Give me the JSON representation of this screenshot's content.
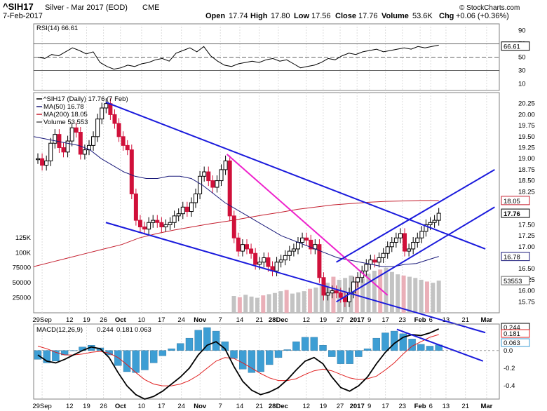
{
  "header": {
    "symbol": "^SIH17",
    "description": "Silver - Mar 2017 (EOD)",
    "exchange": "CME",
    "date": "7-Feb-2017",
    "open_label": "Open",
    "open_value": "17.74",
    "high_label": "High",
    "high_value": "17.80",
    "low_label": "Low",
    "low_value": "17.56",
    "close_label": "Close",
    "close_value": "17.76",
    "volume_label": "Volume",
    "volume_value": "53.6K",
    "chg_label": "Chg",
    "chg_value": "+0.06 (+0.36%)",
    "watermark": "© StockCharts.com"
  },
  "colors": {
    "up_candle": "#000000",
    "down_candle": "#d0103a",
    "ma50": "#1a1a7a",
    "ma200": "#c41e2e",
    "trendline": "#1a1adc",
    "magenta_line": "#ee22cc",
    "volume_up": "#bdbdbd",
    "volume_down": "#e8a6b0",
    "macd_hist": "#3d9ed4",
    "macd_line": "#000000",
    "signal_line": "#e02020"
  },
  "chart_data": [
    {
      "type": "line",
      "panel": "RSI",
      "legend": "RSI(14) 66.61",
      "current_value": 66.61,
      "ylim": [
        0,
        100
      ],
      "y_ticks": [
        90,
        70,
        50,
        30,
        10
      ],
      "reference_lines": [
        70,
        50,
        30
      ],
      "x_labels": [
        "29Sep",
        "12",
        "19",
        "26",
        "Oct",
        "10",
        "17",
        "24",
        "Nov",
        "7",
        "14",
        "21",
        "28Dec",
        "12",
        "19",
        "27",
        "2017",
        "9",
        "17",
        "23",
        "Feb",
        "6",
        "13",
        "21",
        "Mar",
        "6"
      ],
      "series": [
        {
          "name": "RSI(14)",
          "values": [
            50,
            48,
            54,
            52,
            58,
            64,
            60,
            55,
            58,
            42,
            36,
            32,
            34,
            38,
            36,
            40,
            42,
            46,
            48,
            44,
            56,
            60,
            64,
            58,
            66,
            52,
            44,
            38,
            36,
            40,
            42,
            44,
            42,
            46,
            48,
            44,
            46,
            40,
            34,
            36,
            38,
            42,
            48,
            46,
            52,
            56,
            54,
            58,
            60,
            62,
            58,
            60,
            62,
            64,
            62,
            66,
            64,
            66,
            68
          ]
        }
      ]
    },
    {
      "type": "bar",
      "panel": "Price",
      "legend": [
        "^SIH17 (Daily) 17.76 (7 Feb)",
        "MA(50) 16.78",
        "MA(200) 18.05",
        "Volume 53,553"
      ],
      "ylim": [
        15.5,
        20.5
      ],
      "y_ticks": [
        20.25,
        20.0,
        19.75,
        19.5,
        19.25,
        19.0,
        18.75,
        18.5,
        18.25,
        18.05,
        17.76,
        17.5,
        17.25,
        17.0,
        16.78,
        16.5,
        16.25,
        16.0,
        15.75
      ],
      "price_tags": [
        {
          "label": "18.05",
          "series": "MA(200)"
        },
        {
          "label": "17.76",
          "series": "Close"
        },
        {
          "label": "16.78",
          "series": "MA(50)"
        },
        {
          "label": "53553",
          "series": "Volume"
        }
      ],
      "volume_ticks": [
        "125K",
        "100K",
        "75000",
        "50000",
        "25000"
      ],
      "x_labels": [
        "29Sep",
        "12",
        "19",
        "26",
        "Oct",
        "10",
        "17",
        "24",
        "Nov",
        "7",
        "14",
        "21",
        "28Dec",
        "12",
        "19",
        "27",
        "2017",
        "9",
        "17",
        "23",
        "Feb",
        "6",
        "13",
        "21",
        "Mar",
        "6"
      ],
      "ohlc_close": [
        19.0,
        18.85,
        18.95,
        19.35,
        19.55,
        19.25,
        19.15,
        19.4,
        19.7,
        19.6,
        19.1,
        19.2,
        19.3,
        19.5,
        19.9,
        20.15,
        20.25,
        20.0,
        19.8,
        19.5,
        19.3,
        19.2,
        18.2,
        17.6,
        17.45,
        17.4,
        17.55,
        17.6,
        17.55,
        17.45,
        17.5,
        17.55,
        17.7,
        17.75,
        17.9,
        17.8,
        18.0,
        18.2,
        18.6,
        18.7,
        18.5,
        18.35,
        18.5,
        18.75,
        18.95,
        17.7,
        17.2,
        16.9,
        17.05,
        16.95,
        16.85,
        16.6,
        16.65,
        16.75,
        16.55,
        16.45,
        16.65,
        16.7,
        16.8,
        16.9,
        16.95,
        17.1,
        17.2,
        17.15,
        16.95,
        17.05,
        16.3,
        15.9,
        15.95,
        16.0,
        15.95,
        15.85,
        15.75,
        15.95,
        16.2,
        16.3,
        16.45,
        16.6,
        16.7,
        16.65,
        16.75,
        16.85,
        17.0,
        17.1,
        17.2,
        17.3,
        16.9,
        16.95,
        17.1,
        17.2,
        17.35,
        17.5,
        17.55,
        17.6,
        17.76
      ],
      "ma_series": [
        {
          "name": "MA(50)",
          "values": [
            19.5,
            19.45,
            19.4,
            19.35,
            19.3,
            19.2,
            19.0,
            18.85,
            18.7,
            18.6,
            18.55,
            18.55,
            18.6,
            18.6,
            18.55,
            18.4,
            18.2,
            18.0,
            17.85,
            17.7,
            17.55,
            17.4,
            17.25,
            17.15,
            17.05,
            16.95,
            16.85,
            16.75,
            16.7,
            16.65,
            16.6,
            16.55,
            16.55,
            16.6,
            16.62,
            16.7,
            16.78
          ]
        },
        {
          "name": "MA(200)",
          "values": [
            16.55,
            16.65,
            16.75,
            16.85,
            16.95,
            17.05,
            17.2,
            17.3,
            17.38,
            17.45,
            17.52,
            17.58,
            17.65,
            17.72,
            17.78,
            17.85,
            17.9,
            17.95,
            17.98,
            18.01,
            18.03,
            18.04,
            18.05,
            18.05
          ]
        }
      ],
      "volume": [
        28000,
        26000,
        30000,
        27000,
        25000,
        29000,
        31000,
        33000,
        36000,
        38000,
        32000,
        34000,
        36000,
        40000,
        42000,
        45000,
        50000,
        60000,
        55000,
        58000,
        62000,
        60000,
        57000,
        65000,
        70000,
        72000,
        75000,
        68000,
        64000,
        62000,
        60000,
        58000,
        55000,
        52000,
        50000,
        53553
      ]
    },
    {
      "type": "line",
      "panel": "MACD",
      "legend": [
        "MACD(12,26,9)",
        "0.244",
        "0.181",
        "0.063"
      ],
      "ylim": [
        -0.55,
        0.3
      ],
      "y_ticks": [
        0.244,
        0.181,
        0.063,
        0.0,
        -0.2,
        -0.4
      ],
      "x_labels": [
        "29Sep",
        "12",
        "19",
        "26",
        "Oct",
        "10",
        "17",
        "24",
        "Nov",
        "7",
        "14",
        "21",
        "28Dec",
        "12",
        "19",
        "27",
        "2017",
        "9",
        "17",
        "23",
        "Feb",
        "6",
        "13",
        "21",
        "Mar",
        "6"
      ],
      "series": [
        {
          "name": "MACD(12,26,9)",
          "values": [
            -0.05,
            -0.12,
            -0.14,
            -0.1,
            -0.05,
            0.0,
            0.04,
            0.02,
            -0.08,
            -0.25,
            -0.4,
            -0.5,
            -0.55,
            -0.52,
            -0.46,
            -0.38,
            -0.3,
            -0.2,
            -0.05,
            0.06,
            0.1,
            0.02,
            -0.18,
            -0.35,
            -0.45,
            -0.5,
            -0.47,
            -0.42,
            -0.33,
            -0.22,
            -0.12,
            -0.08,
            -0.15,
            -0.3,
            -0.42,
            -0.46,
            -0.4,
            -0.3,
            -0.15,
            -0.02,
            0.08,
            0.15,
            0.18,
            0.17,
            0.2,
            0.244
          ]
        },
        {
          "name": "Signal",
          "values": [
            0.05,
            0.02,
            -0.02,
            -0.05,
            -0.05,
            -0.04,
            -0.02,
            -0.01,
            -0.03,
            -0.08,
            -0.16,
            -0.25,
            -0.33,
            -0.38,
            -0.4,
            -0.4,
            -0.38,
            -0.34,
            -0.28,
            -0.2,
            -0.12,
            -0.08,
            -0.09,
            -0.14,
            -0.2,
            -0.26,
            -0.31,
            -0.34,
            -0.34,
            -0.32,
            -0.27,
            -0.23,
            -0.21,
            -0.23,
            -0.27,
            -0.31,
            -0.33,
            -0.32,
            -0.29,
            -0.22,
            -0.14,
            -0.04,
            0.05,
            0.1,
            0.15,
            0.181
          ]
        },
        {
          "name": "Histogram",
          "values": [
            -0.1,
            -0.14,
            -0.12,
            -0.05,
            0.0,
            0.04,
            0.06,
            0.03,
            -0.05,
            -0.17,
            -0.24,
            -0.25,
            -0.22,
            -0.14,
            -0.06,
            0.02,
            0.08,
            0.14,
            0.23,
            0.26,
            0.22,
            0.1,
            -0.09,
            -0.21,
            -0.25,
            -0.24,
            -0.16,
            -0.08,
            0.01,
            0.1,
            0.15,
            0.15,
            0.06,
            -0.07,
            -0.15,
            -0.15,
            -0.07,
            0.02,
            0.14,
            0.2,
            0.22,
            0.19,
            0.13,
            0.07,
            0.05,
            0.063
          ]
        }
      ]
    }
  ]
}
